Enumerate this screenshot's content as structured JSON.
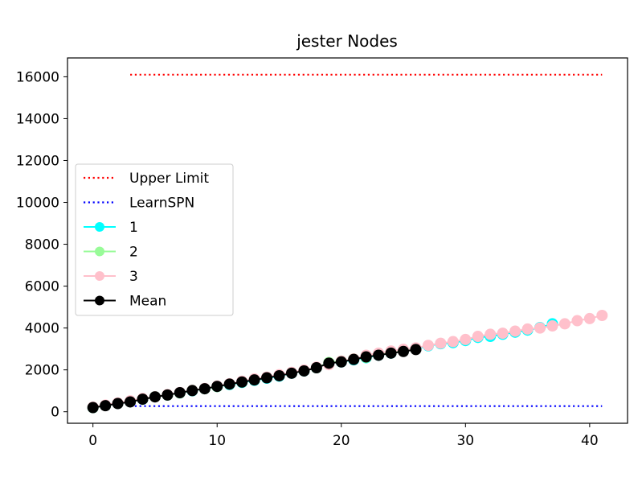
{
  "chart_data": {
    "type": "line",
    "title": "jester Nodes",
    "xlabel": "",
    "ylabel": "",
    "xlim": [
      -2.05,
      43.05
    ],
    "ylim": [
      -550,
      16900
    ],
    "x_ticks": [
      0,
      10,
      20,
      30,
      40
    ],
    "y_ticks": [
      0,
      2000,
      4000,
      6000,
      8000,
      10000,
      12000,
      14000,
      16000
    ],
    "legend_position": "center-left",
    "series": [
      {
        "name": "Upper Limit",
        "style": "dotted",
        "color": "#ff0000",
        "x": [
          3,
          41
        ],
        "y": [
          16100,
          16100
        ]
      },
      {
        "name": "LearnSPN",
        "style": "dotted",
        "color": "#0000ff",
        "x": [
          3,
          41
        ],
        "y": [
          270,
          270
        ]
      },
      {
        "name": "1",
        "style": "line-marker",
        "color": "#00ffff",
        "x": [
          0,
          1,
          2,
          3,
          4,
          5,
          6,
          7,
          8,
          9,
          10,
          11,
          12,
          13,
          14,
          15,
          16,
          17,
          18,
          19,
          20,
          21,
          22,
          23,
          24,
          25,
          26,
          27,
          28,
          29,
          30,
          31,
          32,
          33,
          34,
          35,
          36,
          37
        ],
        "y": [
          200,
          300,
          400,
          480,
          600,
          720,
          800,
          900,
          1000,
          1100,
          1200,
          1300,
          1400,
          1500,
          1600,
          1700,
          1840,
          1950,
          2100,
          2280,
          2380,
          2480,
          2580,
          2700,
          2800,
          2900,
          3000,
          3150,
          3250,
          3300,
          3400,
          3550,
          3600,
          3700,
          3800,
          3900,
          4020,
          4200
        ]
      },
      {
        "name": "2",
        "style": "line-marker",
        "color": "#98fb98",
        "x": [
          0,
          1,
          2,
          3,
          4,
          5,
          6,
          7,
          8,
          9,
          10,
          11,
          12,
          13,
          14,
          15,
          16,
          17,
          18,
          19,
          20,
          21,
          22,
          23,
          24,
          25,
          26
        ],
        "y": [
          200,
          300,
          400,
          500,
          620,
          720,
          800,
          900,
          1020,
          1100,
          1200,
          1320,
          1420,
          1530,
          1630,
          1750,
          1870,
          1970,
          2100,
          2350,
          2420,
          2520,
          2600,
          2720,
          2820,
          2900,
          2990
        ]
      },
      {
        "name": "3",
        "style": "line-marker",
        "color": "#ffc0cb",
        "x": [
          0,
          1,
          2,
          3,
          4,
          5,
          6,
          7,
          8,
          9,
          10,
          11,
          12,
          13,
          14,
          15,
          16,
          17,
          18,
          19,
          20,
          21,
          22,
          23,
          24,
          25,
          26,
          27,
          28,
          29,
          30,
          31,
          32,
          33,
          34,
          35,
          36,
          37,
          38,
          39,
          40,
          41
        ],
        "y": [
          220,
          320,
          420,
          520,
          630,
          720,
          820,
          920,
          1020,
          1110,
          1230,
          1340,
          1460,
          1570,
          1650,
          1770,
          1880,
          1990,
          2130,
          2250,
          2420,
          2520,
          2700,
          2800,
          2900,
          2980,
          3050,
          3170,
          3270,
          3350,
          3450,
          3600,
          3700,
          3750,
          3850,
          3950,
          4000,
          4100,
          4200,
          4350,
          4450,
          4600
        ]
      },
      {
        "name": "Mean",
        "style": "line-marker",
        "color": "#000000",
        "x": [
          0,
          1,
          2,
          3,
          4,
          5,
          6,
          7,
          8,
          9,
          10,
          11,
          12,
          13,
          14,
          15,
          16,
          17,
          18,
          19,
          20,
          21,
          22,
          23,
          24,
          25,
          26
        ],
        "y": [
          200,
          290,
          390,
          470,
          600,
          710,
          800,
          910,
          1010,
          1100,
          1210,
          1320,
          1420,
          1520,
          1620,
          1720,
          1840,
          1950,
          2100,
          2320,
          2380,
          2500,
          2620,
          2700,
          2800,
          2880,
          2970
        ]
      }
    ]
  }
}
